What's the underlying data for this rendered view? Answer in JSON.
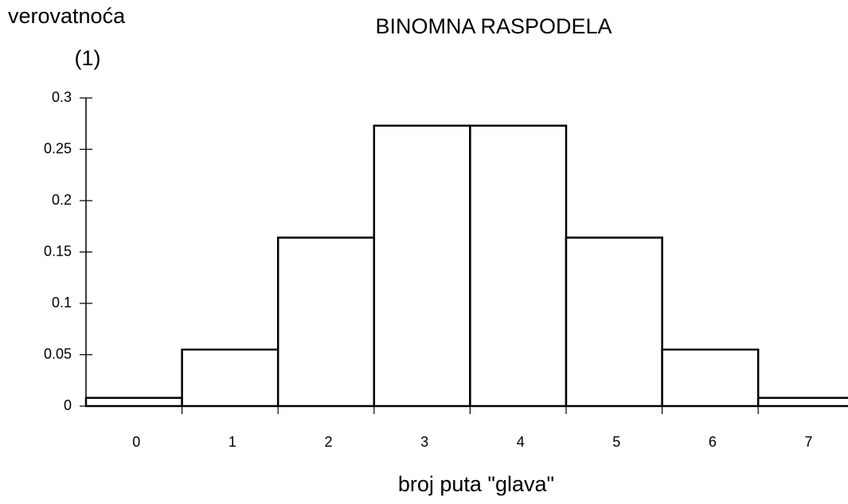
{
  "chart_data": {
    "type": "bar",
    "title": "BINOMNA RASPODELA",
    "y_label": "verovatnoća",
    "y_unit": "(1)",
    "x_label": "broj puta \"glava\"",
    "categories": [
      "0",
      "1",
      "2",
      "3",
      "4",
      "5",
      "6",
      "7"
    ],
    "values": [
      0.008,
      0.055,
      0.164,
      0.273,
      0.273,
      0.164,
      0.055,
      0.008
    ],
    "color": "#ffffff",
    "ylim": [
      0,
      0.3
    ],
    "yticks": [
      0,
      0.05,
      0.1,
      0.15,
      0.2,
      0.25,
      0.3
    ],
    "grid": false
  }
}
